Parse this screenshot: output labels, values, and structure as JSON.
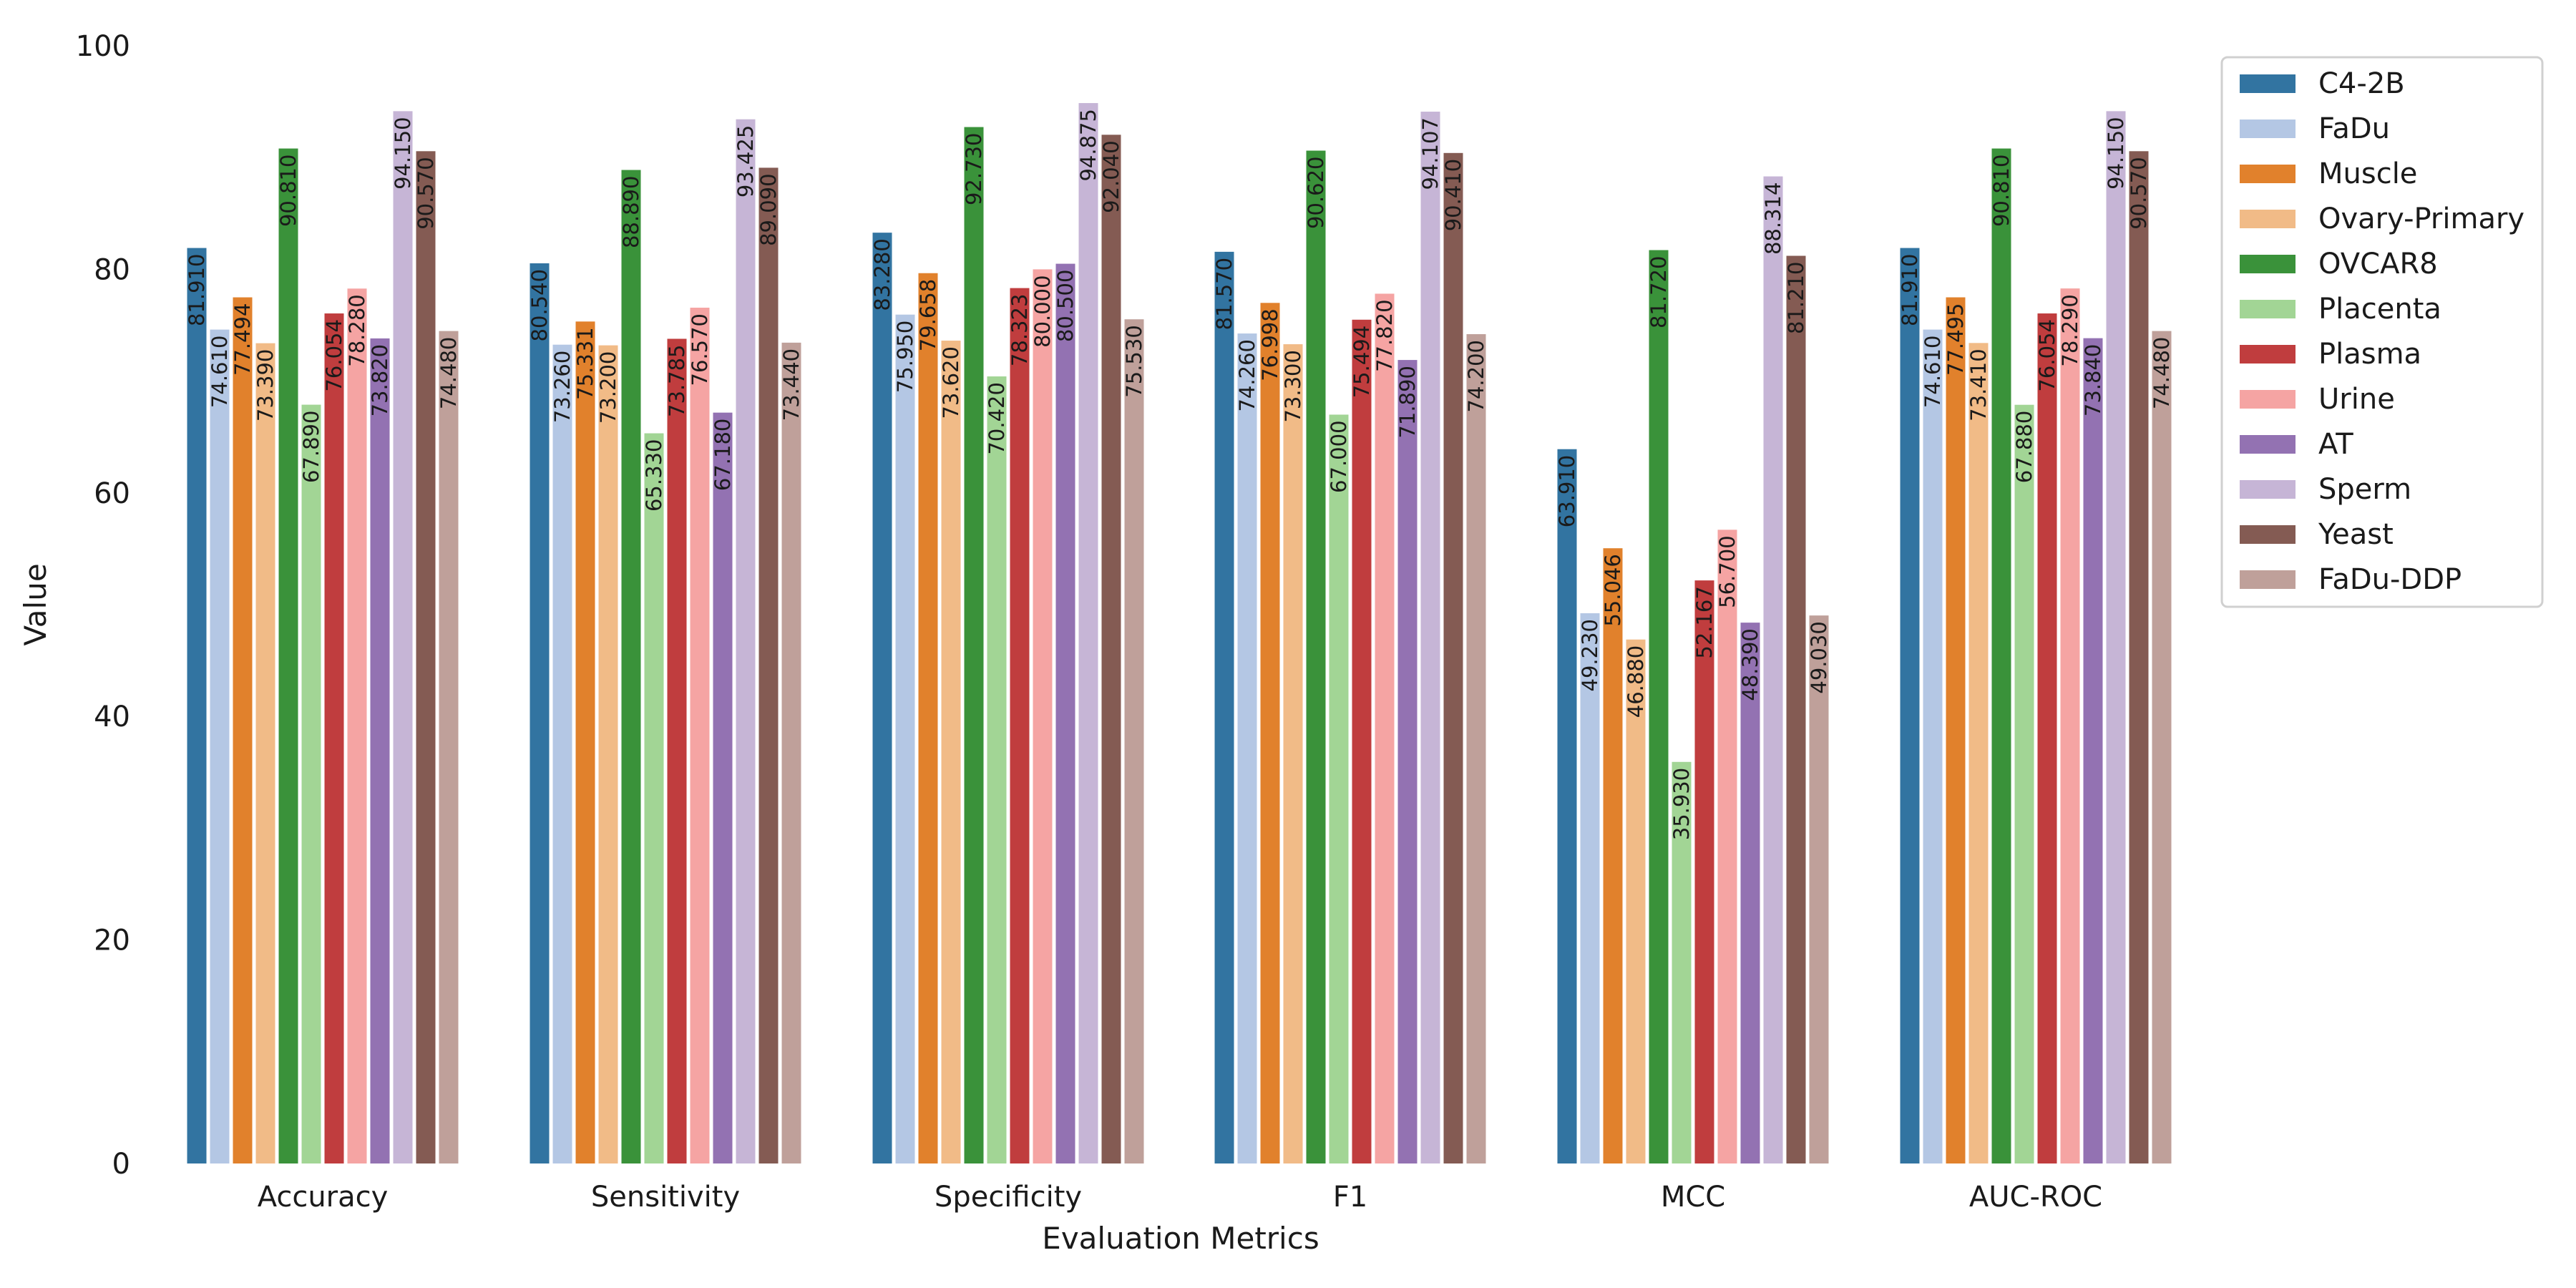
{
  "chart_data": {
    "type": "bar",
    "xlabel": "Evaluation Metrics",
    "ylabel": "Value",
    "ylim": [
      0,
      100
    ],
    "yticks": [
      0,
      20,
      40,
      60,
      80,
      100
    ],
    "grid": false,
    "legend_position": "top-right",
    "categories": [
      "Accuracy",
      "Sensitivity",
      "Specificity",
      "F1",
      "MCC",
      "AUC-ROC"
    ],
    "series": [
      {
        "name": "C4-2B",
        "color": "#3274a1",
        "values": [
          81.91,
          80.54,
          83.28,
          81.57,
          63.91,
          81.91
        ],
        "labels": [
          "81.910",
          "80.540",
          "83.280",
          "81.570",
          "63.910",
          "81.910"
        ]
      },
      {
        "name": "FaDu",
        "color": "#b4c7e4",
        "values": [
          74.61,
          73.26,
          75.95,
          74.26,
          49.23,
          74.61
        ],
        "labels": [
          "74.610",
          "73.260",
          "75.950",
          "74.260",
          "49.230",
          "74.610"
        ]
      },
      {
        "name": "Muscle",
        "color": "#e1812c",
        "values": [
          77.494,
          75.331,
          79.658,
          76.998,
          55.046,
          77.495
        ],
        "labels": [
          "77.494",
          "75.331",
          "79.658",
          "76.998",
          "55.046",
          "77.495"
        ]
      },
      {
        "name": "Ovary-Primary",
        "color": "#f1bb87",
        "values": [
          73.39,
          73.2,
          73.62,
          73.3,
          46.88,
          73.41
        ],
        "labels": [
          "73.390",
          "73.200",
          "73.620",
          "73.300",
          "46.880",
          "73.410"
        ]
      },
      {
        "name": "OVCAR8",
        "color": "#3a923a",
        "values": [
          90.81,
          88.89,
          92.73,
          90.62,
          81.72,
          90.81
        ],
        "labels": [
          "90.810",
          "88.890",
          "92.730",
          "90.620",
          "81.720",
          "90.810"
        ]
      },
      {
        "name": "Placenta",
        "color": "#a2d595",
        "values": [
          67.89,
          65.33,
          70.42,
          67.0,
          35.93,
          67.88
        ],
        "labels": [
          "67.890",
          "65.330",
          "70.420",
          "67.000",
          "35.930",
          "67.880"
        ]
      },
      {
        "name": "Plasma",
        "color": "#c03d3e",
        "values": [
          76.054,
          73.785,
          78.323,
          75.494,
          52.167,
          76.054
        ],
        "labels": [
          "76.054",
          "73.785",
          "78.323",
          "75.494",
          "52.167",
          "76.054"
        ]
      },
      {
        "name": "Urine",
        "color": "#f5a4a3",
        "values": [
          78.28,
          76.57,
          80.0,
          77.82,
          56.7,
          78.29
        ],
        "labels": [
          "78.280",
          "76.570",
          "80.000",
          "77.820",
          "56.700",
          "78.290"
        ]
      },
      {
        "name": "AT",
        "color": "#9372b2",
        "values": [
          73.82,
          67.18,
          80.5,
          71.89,
          48.39,
          73.84
        ],
        "labels": [
          "73.820",
          "67.180",
          "80.500",
          "71.890",
          "48.390",
          "73.840"
        ]
      },
      {
        "name": "Sperm",
        "color": "#c6b5d6",
        "values": [
          94.15,
          93.425,
          94.875,
          94.107,
          88.314,
          94.15
        ],
        "labels": [
          "94.150",
          "93.425",
          "94.875",
          "94.107",
          "88.314",
          "94.150"
        ]
      },
      {
        "name": "Yeast",
        "color": "#845b53",
        "values": [
          90.57,
          89.09,
          92.04,
          90.41,
          81.21,
          90.57
        ],
        "labels": [
          "90.570",
          "89.090",
          "92.040",
          "90.410",
          "81.210",
          "90.570"
        ]
      },
      {
        "name": "FaDu-DDP",
        "color": "#bfa09a",
        "values": [
          74.48,
          73.44,
          75.53,
          74.2,
          49.03,
          74.48
        ],
        "labels": [
          "74.480",
          "73.440",
          "75.530",
          "74.200",
          "49.030",
          "74.480"
        ]
      }
    ]
  }
}
